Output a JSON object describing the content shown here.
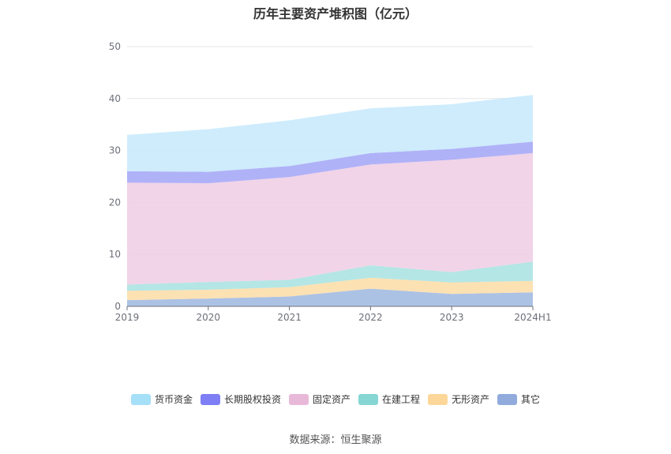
{
  "chart_data": {
    "type": "area",
    "stacked": true,
    "title": "历年主要资产堆积图（亿元）",
    "categories": [
      "2019",
      "2020",
      "2021",
      "2022",
      "2023",
      "2024H1"
    ],
    "ylim": [
      0,
      50
    ],
    "yticks": [
      0,
      10,
      20,
      30,
      40,
      50
    ],
    "grid": true,
    "legend_position": "bottom",
    "series": [
      {
        "name": "其它",
        "color": "#9db7e0",
        "values": [
          1.2,
          1.5,
          1.9,
          3.4,
          2.4,
          2.7
        ]
      },
      {
        "name": "无形资产",
        "color": "#fcdca6",
        "values": [
          1.8,
          1.7,
          1.8,
          2.1,
          2.2,
          2.2
        ]
      },
      {
        "name": "在建工程",
        "color": "#a7e2e0",
        "values": [
          1.2,
          1.5,
          1.4,
          2.4,
          2.0,
          3.7
        ]
      },
      {
        "name": "固定资产",
        "color": "#efcde4",
        "values": [
          19.6,
          19.0,
          19.8,
          19.4,
          21.6,
          20.9
        ]
      },
      {
        "name": "长期股权投资",
        "color": "#a2a5f7",
        "values": [
          2.2,
          2.2,
          2.1,
          2.2,
          2.1,
          2.2
        ]
      },
      {
        "name": "货币资金",
        "color": "#c6e9fb",
        "values": [
          7.0,
          8.2,
          8.8,
          8.6,
          8.6,
          9.0
        ]
      }
    ],
    "legend": [
      {
        "name": "货币资金",
        "color": "#a6dff8"
      },
      {
        "name": "长期股权投资",
        "color": "#7f7ff5"
      },
      {
        "name": "固定资产",
        "color": "#e8b8d8"
      },
      {
        "name": "在建工程",
        "color": "#86d6d4"
      },
      {
        "name": "无形资产",
        "color": "#fdd79a"
      },
      {
        "name": "其它",
        "color": "#91abdc"
      }
    ]
  },
  "source": "数据来源：恒生聚源"
}
